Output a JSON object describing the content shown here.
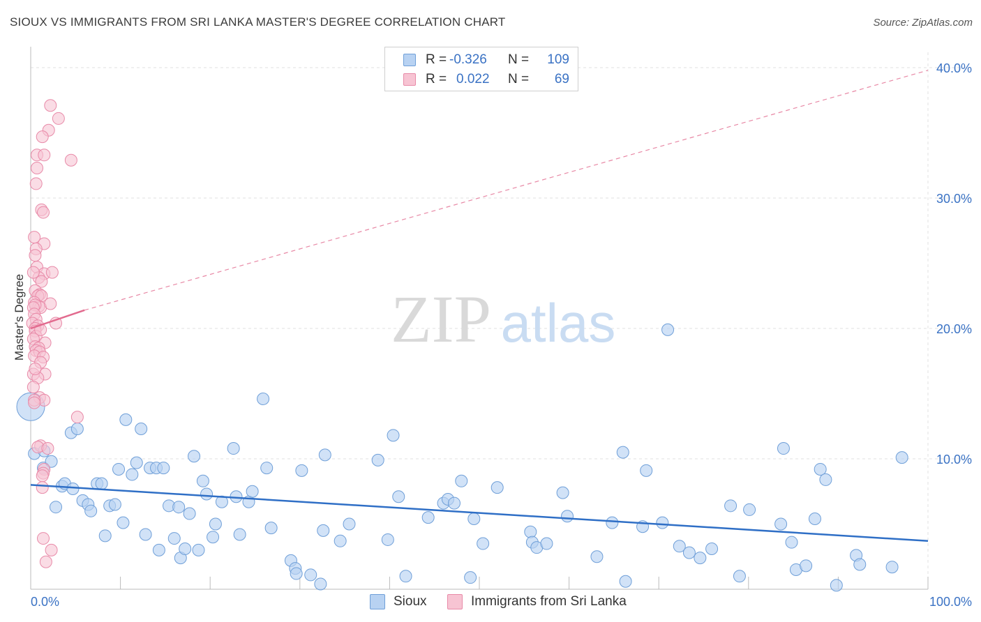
{
  "title": "SIOUX VS IMMIGRANTS FROM SRI LANKA MASTER'S DEGREE CORRELATION CHART",
  "source": "Source: ZipAtlas.com",
  "watermark": {
    "zip": "ZIP",
    "atlas": "atlas"
  },
  "legend": {
    "rows": [
      {
        "r_label": "R =",
        "r_value": "-0.326",
        "n_label": "N =",
        "n_value": "109"
      },
      {
        "r_label": "R =",
        "r_value": "0.022",
        "n_label": "N =",
        "n_value": "69"
      }
    ]
  },
  "colors": {
    "sioux_fill": "#b8d2f2",
    "sioux_stroke": "#6f9fd8",
    "sioux_line": "#2f6fc6",
    "srilanka_fill": "#f7c4d3",
    "srilanka_stroke": "#e88aa8",
    "srilanka_line": "#e26a8e",
    "tick_label": "#3a72c4",
    "grid": "#e0e0e0"
  },
  "chart_data": {
    "type": "scatter",
    "title": "SIOUX VS IMMIGRANTS FROM SRI LANKA MASTER'S DEGREE CORRELATION CHART",
    "xlabel": "",
    "ylabel": "Master's Degree",
    "xlim": [
      0,
      100
    ],
    "ylim": [
      0,
      40
    ],
    "x_tick_labels": [
      "0.0%",
      "100.0%"
    ],
    "y_ticks": [
      10,
      20,
      30,
      40
    ],
    "y_tick_labels": [
      "10.0%",
      "20.0%",
      "30.0%",
      "40.0%"
    ],
    "grid": true,
    "legend_position": "top-center",
    "series": [
      {
        "name": "Sioux",
        "r": -0.326,
        "n": 109,
        "trend": {
          "x": [
            0,
            100
          ],
          "y": [
            8.0,
            3.7
          ]
        },
        "points": [
          [
            0.0,
            14.0
          ],
          [
            0.4,
            10.4
          ],
          [
            1.5,
            10.6
          ],
          [
            1.4,
            9.3
          ],
          [
            2.3,
            9.8
          ],
          [
            2.8,
            6.3
          ],
          [
            3.5,
            7.9
          ],
          [
            3.8,
            8.1
          ],
          [
            4.5,
            12.0
          ],
          [
            5.2,
            12.3
          ],
          [
            4.7,
            7.7
          ],
          [
            5.8,
            6.8
          ],
          [
            6.4,
            6.5
          ],
          [
            6.7,
            6.0
          ],
          [
            7.4,
            8.1
          ],
          [
            7.9,
            8.1
          ],
          [
            8.3,
            4.1
          ],
          [
            8.8,
            6.4
          ],
          [
            9.4,
            6.5
          ],
          [
            9.8,
            9.2
          ],
          [
            10.3,
            5.1
          ],
          [
            10.6,
            13.0
          ],
          [
            11.3,
            8.8
          ],
          [
            11.8,
            9.7
          ],
          [
            12.3,
            12.3
          ],
          [
            12.8,
            4.2
          ],
          [
            13.3,
            9.3
          ],
          [
            14.0,
            9.3
          ],
          [
            14.3,
            3.0
          ],
          [
            14.8,
            9.3
          ],
          [
            15.4,
            6.4
          ],
          [
            16.0,
            3.9
          ],
          [
            16.5,
            6.3
          ],
          [
            16.7,
            2.4
          ],
          [
            17.2,
            3.1
          ],
          [
            17.7,
            5.8
          ],
          [
            18.2,
            10.2
          ],
          [
            18.7,
            3.0
          ],
          [
            19.2,
            8.3
          ],
          [
            19.6,
            7.3
          ],
          [
            20.3,
            4.0
          ],
          [
            20.6,
            5.0
          ],
          [
            21.3,
            6.7
          ],
          [
            22.6,
            10.8
          ],
          [
            22.9,
            7.1
          ],
          [
            23.3,
            4.2
          ],
          [
            24.3,
            6.7
          ],
          [
            24.7,
            7.5
          ],
          [
            25.9,
            14.6
          ],
          [
            26.3,
            9.3
          ],
          [
            26.8,
            4.7
          ],
          [
            29.0,
            2.2
          ],
          [
            29.5,
            1.6
          ],
          [
            29.6,
            1.2
          ],
          [
            30.2,
            9.1
          ],
          [
            31.2,
            1.1
          ],
          [
            32.3,
            0.4
          ],
          [
            32.6,
            4.5
          ],
          [
            32.8,
            10.3
          ],
          [
            34.5,
            3.7
          ],
          [
            35.5,
            5.0
          ],
          [
            38.7,
            9.9
          ],
          [
            39.8,
            3.8
          ],
          [
            40.4,
            11.8
          ],
          [
            41.0,
            7.1
          ],
          [
            41.8,
            1.0
          ],
          [
            44.3,
            5.5
          ],
          [
            46.0,
            6.6
          ],
          [
            46.5,
            6.9
          ],
          [
            47.2,
            6.6
          ],
          [
            48.0,
            8.3
          ],
          [
            49.0,
            0.9
          ],
          [
            49.4,
            5.4
          ],
          [
            50.4,
            3.5
          ],
          [
            52.0,
            7.8
          ],
          [
            55.7,
            4.4
          ],
          [
            55.9,
            3.6
          ],
          [
            56.4,
            3.2
          ],
          [
            57.5,
            3.5
          ],
          [
            59.3,
            7.4
          ],
          [
            59.8,
            5.6
          ],
          [
            63.1,
            2.5
          ],
          [
            64.8,
            5.1
          ],
          [
            66.3,
            0.6
          ],
          [
            66.0,
            10.5
          ],
          [
            68.2,
            4.8
          ],
          [
            68.6,
            9.1
          ],
          [
            71.0,
            19.9
          ],
          [
            70.4,
            5.1
          ],
          [
            72.3,
            3.3
          ],
          [
            73.4,
            2.8
          ],
          [
            74.6,
            2.4
          ],
          [
            75.9,
            3.1
          ],
          [
            78.0,
            6.4
          ],
          [
            79.0,
            1.0
          ],
          [
            80.1,
            6.1
          ],
          [
            83.6,
            5.0
          ],
          [
            83.9,
            10.8
          ],
          [
            84.8,
            3.6
          ],
          [
            85.3,
            1.5
          ],
          [
            86.4,
            1.8
          ],
          [
            87.4,
            5.4
          ],
          [
            88.0,
            9.2
          ],
          [
            88.6,
            8.4
          ],
          [
            89.8,
            0.3
          ],
          [
            92.0,
            2.6
          ],
          [
            92.4,
            1.9
          ],
          [
            96.0,
            1.7
          ],
          [
            97.1,
            10.1
          ]
        ]
      },
      {
        "name": "Immigrants from Sri Lanka",
        "r": 0.022,
        "n": 69,
        "trend": {
          "x": [
            0,
            6
          ],
          "y": [
            20.0,
            21.4
          ]
        },
        "trend_extended": {
          "x": [
            6,
            100
          ],
          "y": [
            21.4,
            39.8
          ]
        },
        "points": [
          [
            2.2,
            37.1
          ],
          [
            3.1,
            36.1
          ],
          [
            2.0,
            35.2
          ],
          [
            1.3,
            34.7
          ],
          [
            0.7,
            33.3
          ],
          [
            1.5,
            33.3
          ],
          [
            4.5,
            32.9
          ],
          [
            0.7,
            32.3
          ],
          [
            0.6,
            31.1
          ],
          [
            1.2,
            29.1
          ],
          [
            1.4,
            28.9
          ],
          [
            0.4,
            27.0
          ],
          [
            1.5,
            26.5
          ],
          [
            0.6,
            26.1
          ],
          [
            0.5,
            25.6
          ],
          [
            0.7,
            24.7
          ],
          [
            1.5,
            24.2
          ],
          [
            0.9,
            23.9
          ],
          [
            2.4,
            24.3
          ],
          [
            0.3,
            24.3
          ],
          [
            1.2,
            23.6
          ],
          [
            0.5,
            22.9
          ],
          [
            1.0,
            22.6
          ],
          [
            0.8,
            22.5
          ],
          [
            1.2,
            22.5
          ],
          [
            0.4,
            22.0
          ],
          [
            0.9,
            21.7
          ],
          [
            1.1,
            21.6
          ],
          [
            2.2,
            21.9
          ],
          [
            0.5,
            21.8
          ],
          [
            0.3,
            21.6
          ],
          [
            0.4,
            21.1
          ],
          [
            0.6,
            20.7
          ],
          [
            2.8,
            20.4
          ],
          [
            0.2,
            20.4
          ],
          [
            0.8,
            20.2
          ],
          [
            0.5,
            20.0
          ],
          [
            0.5,
            19.8
          ],
          [
            0.6,
            19.4
          ],
          [
            1.1,
            19.9
          ],
          [
            0.3,
            19.2
          ],
          [
            1.6,
            18.9
          ],
          [
            0.5,
            18.6
          ],
          [
            0.9,
            18.5
          ],
          [
            0.6,
            18.3
          ],
          [
            1.0,
            18.2
          ],
          [
            0.4,
            17.9
          ],
          [
            1.4,
            17.8
          ],
          [
            1.1,
            17.4
          ],
          [
            0.3,
            16.5
          ],
          [
            1.6,
            16.5
          ],
          [
            0.8,
            16.2
          ],
          [
            0.3,
            15.5
          ],
          [
            1.0,
            14.7
          ],
          [
            1.5,
            14.5
          ],
          [
            0.4,
            14.5
          ],
          [
            0.4,
            14.3
          ],
          [
            5.2,
            13.2
          ],
          [
            1.1,
            11.0
          ],
          [
            0.8,
            10.9
          ],
          [
            1.9,
            10.8
          ],
          [
            1.5,
            9.2
          ],
          [
            1.4,
            8.9
          ],
          [
            1.3,
            8.7
          ],
          [
            1.3,
            7.8
          ],
          [
            1.4,
            3.9
          ],
          [
            2.3,
            3.0
          ],
          [
            1.7,
            2.1
          ],
          [
            0.5,
            16.9
          ]
        ]
      }
    ]
  },
  "bottom_legend": [
    {
      "label": "Sioux"
    },
    {
      "label": "Immigrants from Sri Lanka"
    }
  ]
}
